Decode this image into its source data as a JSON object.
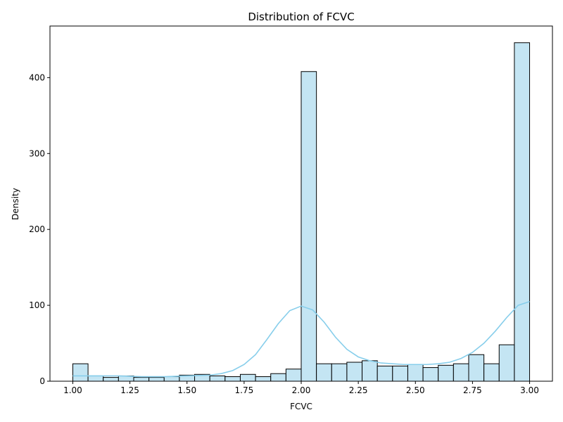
{
  "chart_data": {
    "type": "histogram",
    "title": "Distribution of FCVC",
    "xlabel": "FCVC",
    "ylabel": "Density",
    "xlim": [
      0.9,
      3.1
    ],
    "ylim": [
      0,
      468
    ],
    "x_ticks": [
      1.0,
      1.25,
      1.5,
      1.75,
      2.0,
      2.25,
      2.5,
      2.75,
      3.0
    ],
    "x_tick_labels": [
      "1.00",
      "1.25",
      "1.50",
      "1.75",
      "2.00",
      "2.25",
      "2.50",
      "2.75",
      "3.00"
    ],
    "y_ticks": [
      0,
      100,
      200,
      300,
      400
    ],
    "y_tick_labels": [
      "0",
      "100",
      "200",
      "300",
      "400"
    ],
    "bin_start": 1.0,
    "bin_end": 3.0,
    "counts": [
      23,
      7,
      5,
      7,
      5,
      5,
      6,
      8,
      9,
      7,
      6,
      9,
      6,
      10,
      16,
      408,
      23,
      23,
      25,
      27,
      20,
      20,
      22,
      18,
      21,
      23,
      35,
      23,
      48,
      446
    ],
    "kde": {
      "x": [
        1.0,
        1.1,
        1.2,
        1.3,
        1.4,
        1.5,
        1.6,
        1.65,
        1.7,
        1.75,
        1.8,
        1.85,
        1.9,
        1.95,
        2.0,
        2.05,
        2.1,
        2.15,
        2.2,
        2.25,
        2.3,
        2.35,
        2.4,
        2.45,
        2.5,
        2.55,
        2.6,
        2.65,
        2.7,
        2.75,
        2.8,
        2.85,
        2.9,
        2.95,
        3.0
      ],
      "y": [
        7,
        7,
        7,
        6,
        6,
        7,
        8,
        10,
        14,
        22,
        35,
        55,
        76,
        93,
        99,
        94,
        78,
        58,
        42,
        32,
        27,
        24,
        23,
        22,
        22,
        22,
        23,
        25,
        30,
        38,
        50,
        66,
        84,
        100,
        105
      ]
    },
    "colors": {
      "bar_fill": "#c4e5f3",
      "bar_edge": "#000000",
      "kde_line": "#87ceeb"
    },
    "grid": false,
    "legend": "none"
  }
}
